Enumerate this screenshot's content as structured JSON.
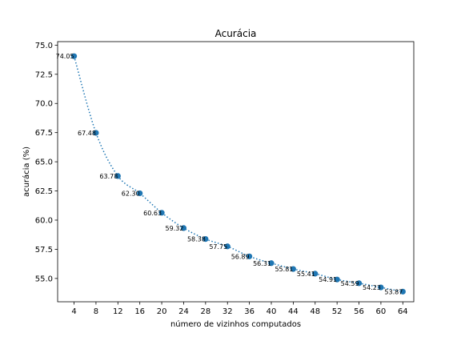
{
  "chart_data": {
    "type": "line",
    "title": "Acurácia",
    "xlabel": "número de vizinhos computados",
    "ylabel": "acurácia (%)",
    "xlim": [
      1,
      66
    ],
    "ylim": [
      53.0,
      75.3
    ],
    "x_ticks": [
      4,
      8,
      12,
      16,
      20,
      24,
      28,
      32,
      36,
      40,
      44,
      48,
      52,
      56,
      60,
      64
    ],
    "x_tick_labels": [
      "4",
      "8",
      "12",
      "16",
      "20",
      "24",
      "28",
      "32",
      "36",
      "40",
      "44",
      "48",
      "52",
      "56",
      "60",
      "64"
    ],
    "y_ticks": [
      55.0,
      57.5,
      60.0,
      62.5,
      65.0,
      67.5,
      70.0,
      72.5,
      75.0
    ],
    "y_tick_labels": [
      "55.0",
      "57.5",
      "60.0",
      "62.5",
      "65.0",
      "67.5",
      "70.0",
      "72.5",
      "75.0"
    ],
    "grid": false,
    "series": [
      {
        "x": [
          4,
          8,
          12,
          16,
          20,
          24,
          28,
          32,
          36,
          40,
          44,
          48,
          52,
          56,
          60,
          64
        ],
        "values": [
          74.05,
          67.48,
          63.78,
          62.3,
          60.63,
          59.32,
          58.38,
          57.75,
          56.89,
          56.31,
          55.81,
          55.41,
          54.91,
          54.59,
          54.23,
          53.87
        ],
        "labels": [
          "74.05",
          "67.48",
          "63.78",
          "62.30",
          "60.63",
          "59.32",
          "58.38",
          "57.75",
          "56.89",
          "56.31",
          "55.81",
          "55.41",
          "54.91",
          "54.59",
          "54.23",
          "53.87"
        ],
        "color": "#1f77b4",
        "line_style": "dotted",
        "marker": "circle"
      }
    ]
  }
}
